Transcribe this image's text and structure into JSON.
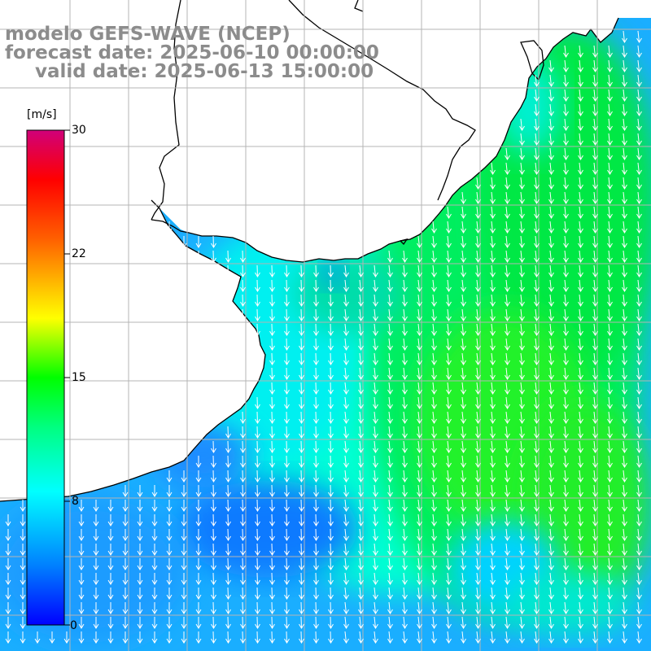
{
  "title": {
    "model": "modelo GEFS-WAVE (NCEP)",
    "forecast": "forecast date: 2025-06-10 00:00:00",
    "valid": "valid date: 2025-06-13 15:00:00"
  },
  "colorbar": {
    "unit": "[m/s]",
    "min": 0,
    "max": 30,
    "ticks": [
      "30",
      "22",
      "15",
      "8",
      "0"
    ]
  },
  "colors": {
    "land": "#ffffff",
    "coastline": "#000000",
    "grid": "#b4b4b4",
    "arrows": "#ffffff",
    "title": "#8c8c8c"
  },
  "map": {
    "field": "wind speed with direction arrows",
    "prevailing_flow": "southward (from north)",
    "speed_range_shown_m_s": [
      6,
      14
    ]
  }
}
